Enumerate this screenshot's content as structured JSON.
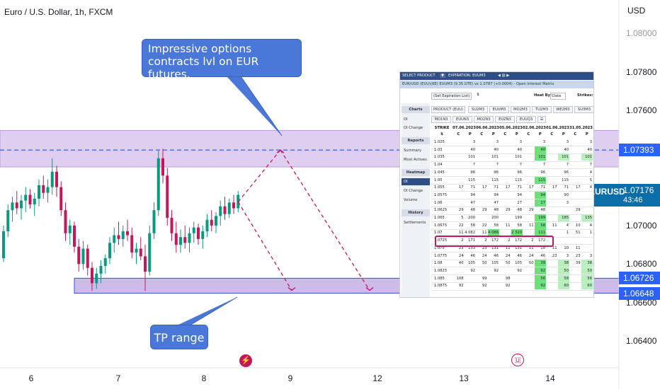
{
  "header": {
    "title": "Euro / U.S. Dollar, 1h, FXCM",
    "currency": "USD"
  },
  "chart_data": {
    "type": "candlestick",
    "title": "Euro / U.S. Dollar, 1h, FXCM",
    "ylabel": "USD",
    "ylim": [
      1.0626,
      1.081
    ],
    "y_ticks": [
      "1.07800",
      "1.07600",
      "1.07200",
      "1.07000",
      "1.06800",
      "1.06600",
      "1.06400"
    ],
    "y_ticks_values": [
      1.078,
      1.076,
      1.072,
      1.07,
      1.068,
      1.066,
      1.064
    ],
    "x_ticks": [
      "6",
      "7",
      "8",
      "9",
      "12",
      "13",
      "14"
    ],
    "price_tags": [
      {
        "label": "1.07393",
        "value": 1.07393
      },
      {
        "label": "1.06726",
        "value": 1.06726
      },
      {
        "label": "1.06648",
        "value": 1.06648
      }
    ],
    "last_price": {
      "symbol": "EURUSD",
      "price": "1.07176",
      "countdown": "43:46",
      "value": 1.07176
    },
    "zones": [
      {
        "name": "resistance",
        "from": 1.07305,
        "to": 1.07495,
        "color": "#d9c6ec"
      },
      {
        "name": "support",
        "from": 1.06648,
        "to": 1.06726,
        "color": "#cdbbe9"
      }
    ],
    "dashed_level": 1.07393,
    "candles": [
      [
        1.0683,
        1.07,
        1.0681,
        1.0697
      ],
      [
        1.0697,
        1.0711,
        1.0694,
        1.0708
      ],
      [
        1.0708,
        1.0715,
        1.0702,
        1.0712
      ],
      [
        1.0712,
        1.0718,
        1.0706,
        1.0709
      ],
      [
        1.0709,
        1.0716,
        1.0703,
        1.0713
      ],
      [
        1.0713,
        1.072,
        1.0707,
        1.0716
      ],
      [
        1.0716,
        1.0719,
        1.0709,
        1.0711
      ],
      [
        1.0711,
        1.0717,
        1.0705,
        1.0714
      ],
      [
        1.0714,
        1.0724,
        1.071,
        1.0721
      ],
      [
        1.0721,
        1.0726,
        1.0714,
        1.0717
      ],
      [
        1.0717,
        1.0724,
        1.0712,
        1.072
      ],
      [
        1.072,
        1.0735,
        1.0716,
        1.0728
      ],
      [
        1.0728,
        1.0731,
        1.0715,
        1.072
      ],
      [
        1.072,
        1.0723,
        1.0705,
        1.0708
      ],
      [
        1.0708,
        1.0712,
        1.0692,
        1.0696
      ],
      [
        1.0696,
        1.0703,
        1.069,
        1.07
      ],
      [
        1.07,
        1.0702,
        1.0686,
        1.0689
      ],
      [
        1.0689,
        1.0693,
        1.0676,
        1.068
      ],
      [
        1.068,
        1.0692,
        1.0677,
        1.0688
      ],
      [
        1.0688,
        1.069,
        1.0674,
        1.0678
      ],
      [
        1.0678,
        1.0681,
        1.0666,
        1.067
      ],
      [
        1.067,
        1.0678,
        1.0667,
        1.0675
      ],
      [
        1.0675,
        1.0682,
        1.067,
        1.0679
      ],
      [
        1.0679,
        1.0685,
        1.0675,
        1.0683
      ],
      [
        1.0683,
        1.0694,
        1.068,
        1.0691
      ],
      [
        1.0691,
        1.0699,
        1.0686,
        1.0695
      ],
      [
        1.0695,
        1.0702,
        1.069,
        1.0693
      ],
      [
        1.0693,
        1.07,
        1.0689,
        1.0697
      ],
      [
        1.0697,
        1.0703,
        1.0692,
        1.0695
      ],
      [
        1.0695,
        1.0699,
        1.0683,
        1.0686
      ],
      [
        1.0686,
        1.0691,
        1.068,
        1.0688
      ],
      [
        1.0688,
        1.0694,
        1.0682,
        1.0684
      ],
      [
        1.0684,
        1.069,
        1.0666,
        1.0676
      ],
      [
        1.0676,
        1.07,
        1.0674,
        1.0696
      ],
      [
        1.0696,
        1.0712,
        1.0693,
        1.0708
      ],
      [
        1.0708,
        1.0739,
        1.0705,
        1.0735
      ],
      [
        1.0735,
        1.074,
        1.0722,
        1.0726
      ],
      [
        1.0726,
        1.073,
        1.07,
        1.0704
      ],
      [
        1.0704,
        1.0708,
        1.0692,
        1.0696
      ],
      [
        1.0696,
        1.0702,
        1.0686,
        1.069
      ],
      [
        1.069,
        1.0698,
        1.0686,
        1.0694
      ],
      [
        1.0694,
        1.07,
        1.0688,
        1.0691
      ],
      [
        1.0691,
        1.0699,
        1.0686,
        1.0696
      ],
      [
        1.0696,
        1.0702,
        1.0691,
        1.0699
      ],
      [
        1.0699,
        1.0701,
        1.069,
        1.0693
      ],
      [
        1.0693,
        1.07,
        1.0688,
        1.0697
      ],
      [
        1.0697,
        1.0706,
        1.0694,
        1.0703
      ],
      [
        1.0703,
        1.0708,
        1.0697,
        1.07
      ],
      [
        1.07,
        1.0707,
        1.0696,
        1.0705
      ],
      [
        1.0705,
        1.0713,
        1.07,
        1.071
      ],
      [
        1.071,
        1.0715,
        1.0703,
        1.0706
      ],
      [
        1.0706,
        1.0714,
        1.0704,
        1.0712
      ],
      [
        1.0712,
        1.0716,
        1.0706,
        1.0709
      ],
      [
        1.0709,
        1.0718,
        1.0707,
        1.0716
      ]
    ]
  },
  "annotations": {
    "callout_top": "Impressive options contracts lvl on EUR futures.",
    "callout_bottom": "TP range"
  },
  "matrix": {
    "select_product": "SELECT PRODUCT",
    "expiration": "EXPIRATION: EUUM3",
    "title": "EUR/USD (EUU)(6E) EUUM3 (9.35 DTE) vs 1.0787 (+0.0004) - Open Interest Matrix",
    "expiration_list": "(Set Expiration List)",
    "heat_by": "Heat By:",
    "heat_by_value": "Date",
    "strikes": "Strikes:",
    "side": {
      "charts": "Charts",
      "oi": "OI",
      "oi_change": "OI Change",
      "reports": "Reports",
      "summary": "Summary",
      "most_actives": "Most Actives",
      "heatmap": "Heatmap",
      "hm_oi": "OI",
      "hm_oi_change": "OI Change",
      "volume": "Volume",
      "history": "History",
      "settlements": "Settlements"
    },
    "products": [
      "PRODUCT (EUU)",
      "SU2M3",
      "EUUM3",
      "MO2M3",
      "TU2M3",
      "WE2M3",
      "SU3M3",
      "MO1N3",
      "EUUN3",
      "MO2N3",
      "EUZN3",
      "EUUQ3",
      "☰"
    ],
    "strike_header": "STRIKE",
    "dates": [
      "07.06.2023",
      "06.06.2023",
      "05.06.2023",
      "02.06.2023",
      "01.06.2023",
      "31.05.2023"
    ],
    "cp": [
      "C",
      "P",
      "C",
      "P",
      "C",
      "P",
      "C",
      "P",
      "C",
      "P",
      "C",
      "P"
    ],
    "rows": [
      {
        "strike": "1.025",
        "cells": [
          "",
          "3",
          "",
          "3",
          "",
          "3",
          "",
          "3",
          "",
          "3",
          "",
          "3"
        ]
      },
      {
        "strike": "1.03",
        "cells": [
          "",
          "40",
          "",
          "40",
          "",
          "40",
          "",
          "40",
          "",
          "40",
          "",
          "40"
        ]
      },
      {
        "strike": "1.035",
        "cells": [
          "",
          "101",
          "",
          "101",
          "",
          "101",
          "",
          "101",
          "",
          "101",
          "",
          "101"
        ]
      },
      {
        "strike": "1.04",
        "cells": [
          "",
          "7",
          "",
          "7",
          "",
          "7",
          "",
          "7",
          "",
          "7",
          "",
          "7"
        ]
      },
      {
        "strike": "1.045",
        "cells": [
          "",
          "96",
          "",
          "96",
          "",
          "96",
          "",
          "96",
          "",
          "96",
          "",
          "4"
        ]
      },
      {
        "strike": "1.05",
        "cells": [
          "",
          "115",
          "",
          "115",
          "",
          "115",
          "",
          "115",
          "",
          "115",
          "",
          "5"
        ]
      },
      {
        "strike": "1.055",
        "cells": [
          "17",
          "71",
          "17",
          "71",
          "17",
          "71",
          "17",
          "71",
          "17",
          "71",
          "17",
          "4"
        ]
      },
      {
        "strike": "1.0575",
        "cells": [
          "",
          "94",
          "",
          "94",
          "",
          "94",
          "",
          "94",
          "",
          "90",
          "",
          ""
        ]
      },
      {
        "strike": "1.06",
        "cells": [
          "",
          "47",
          "",
          "47",
          "",
          "27",
          "",
          "27",
          "",
          "3",
          "",
          ""
        ]
      },
      {
        "strike": "1.0625",
        "cells": [
          "29",
          "48",
          "29",
          "48",
          "29",
          "48",
          "29",
          "48",
          "",
          "",
          "29",
          ""
        ]
      },
      {
        "strike": "1.065",
        "cells": [
          "5",
          "200",
          "",
          "200",
          "",
          "199",
          "",
          "199",
          "",
          "185",
          "",
          "135"
        ]
      },
      {
        "strike": "1.0675",
        "cells": [
          "22",
          "58",
          "22",
          "58",
          "11",
          "58",
          "11",
          "58",
          "11",
          "4",
          "10",
          "4"
        ]
      },
      {
        "strike": "1.07",
        "cells": [
          "11",
          "4 082",
          "11",
          "4 086",
          "",
          "2 320",
          "",
          "111",
          "",
          "1",
          "51",
          "1"
        ]
      },
      {
        "strike": "1.0725",
        "cells": [
          "2",
          "171",
          "2",
          "172",
          "2",
          "172",
          "2",
          "172",
          "",
          "",
          "",
          ""
        ]
      },
      {
        "strike": "1.075",
        "cells": [
          "23",
          "133",
          "23",
          "131",
          "11",
          "131",
          "11",
          "10",
          "11",
          "10",
          "11",
          ""
        ]
      },
      {
        "strike": "1.0775",
        "cells": [
          "24",
          "46",
          "24",
          "46",
          "24",
          "46",
          "24",
          "46",
          "23",
          "3",
          "23",
          "3"
        ]
      },
      {
        "strike": "1.08",
        "cells": [
          "40",
          "105",
          "50",
          "105",
          "50",
          "105",
          "50",
          "39",
          "",
          "38",
          "39",
          "38"
        ]
      },
      {
        "strike": "1.0825",
        "cells": [
          "",
          "92",
          "",
          "92",
          "",
          "92",
          "",
          "92",
          "",
          "50",
          "",
          "50"
        ]
      },
      {
        "strike": "1.085",
        "cells": [
          "108",
          "",
          "99",
          "",
          "98",
          "",
          "",
          "56",
          "",
          "58",
          "",
          "56"
        ]
      },
      {
        "strike": "1.0875",
        "cells": [
          "92",
          "",
          "92",
          "",
          "92",
          "",
          "",
          "92",
          "",
          "60",
          "",
          "60"
        ]
      }
    ]
  },
  "colors": {
    "bull": "#089981",
    "bear": "#c2185b",
    "zone_border": "#3b4fd8",
    "dashed_blue": "#2962ff",
    "arrow_red": "#c2185b",
    "heat_strong": "#6ee07a",
    "heat_light": "#b8f0bd"
  }
}
